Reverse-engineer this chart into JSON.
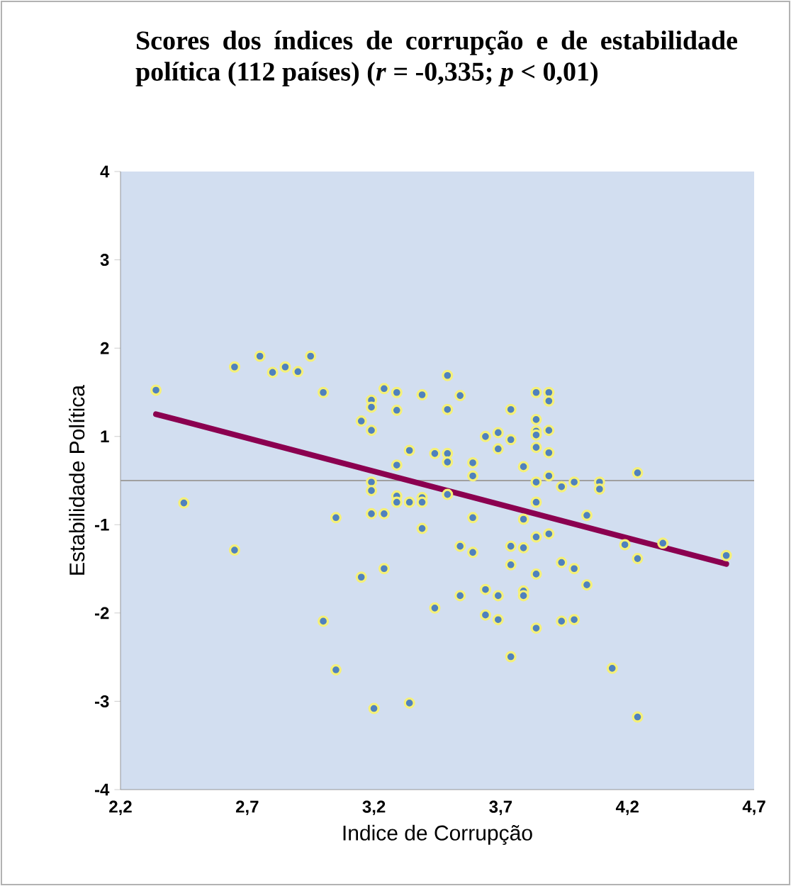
{
  "chart_data": {
    "type": "scatter",
    "title": "Scores dos índices de corrupção e de estabilidade política  (112 países) (*r* = -0,335; *p* < 0,01)",
    "xlabel": "Indice de Corrupção",
    "ylabel": "Estabilidade Política",
    "xlim": [
      2.2,
      4.7
    ],
    "ylim": [
      -4,
      4
    ],
    "xticks": [
      {
        "value": 2.2,
        "label": "2,2"
      },
      {
        "value": 2.7,
        "label": "2,7"
      },
      {
        "value": 3.2,
        "label": "3,2"
      },
      {
        "value": 3.7,
        "label": "3,7"
      },
      {
        "value": 4.2,
        "label": "4,2"
      },
      {
        "value": 4.7,
        "label": "4,7"
      }
    ],
    "yticks": [
      {
        "value": 4,
        "label": "4"
      },
      {
        "value": 2.857,
        "label": "3"
      },
      {
        "value": 1.714,
        "label": "2"
      },
      {
        "value": 0.571,
        "label": "1"
      },
      {
        "value": -0.571,
        "label": "-1"
      },
      {
        "value": -1.714,
        "label": "-2"
      },
      {
        "value": -2.857,
        "label": "-3"
      },
      {
        "value": -4,
        "label": "-4"
      }
    ],
    "ref_lines": [
      {
        "axis": "y",
        "value": 0,
        "color": "#a0a0a0"
      }
    ],
    "marker": "circle",
    "series": [
      {
        "color": "#4f81bd",
        "x": [
          2.34,
          2.65,
          2.75,
          2.8,
          2.85,
          2.9,
          2.95,
          3.0,
          2.45,
          2.65,
          3.05,
          3.0,
          3.15,
          3.24,
          3.15,
          3.19,
          3.19,
          3.19,
          3.24,
          3.29,
          3.29,
          3.39,
          3.34,
          3.29,
          3.19,
          3.19,
          3.19,
          3.24,
          3.29,
          3.29,
          3.34,
          3.39,
          3.39,
          3.44,
          3.44,
          3.49,
          3.54,
          3.49,
          3.49,
          3.49,
          3.59,
          3.59,
          3.39,
          3.49,
          3.59,
          3.54,
          3.59,
          3.74,
          3.64,
          3.69,
          3.69,
          3.74,
          3.84,
          3.89,
          3.89,
          3.84,
          3.84,
          3.84,
          3.89,
          3.84,
          3.89,
          3.79,
          3.84,
          3.89,
          3.94,
          3.99,
          4.09,
          4.09,
          4.24,
          3.84,
          3.79,
          3.84,
          3.89,
          3.74,
          3.79,
          3.74,
          3.84,
          3.94,
          3.99,
          4.04,
          4.04,
          4.19,
          4.24,
          4.34,
          4.59,
          3.54,
          3.64,
          3.69,
          3.79,
          3.79,
          3.64,
          3.69,
          3.84,
          3.94,
          3.99,
          3.05,
          3.2,
          3.34,
          3.74,
          4.14,
          4.24
        ],
        "values": [
          1.17,
          1.47,
          1.61,
          1.4,
          1.47,
          1.41,
          1.61,
          1.14,
          -0.29,
          -0.9,
          -0.48,
          -1.82,
          -1.25,
          -1.14,
          0.77,
          0.65,
          1.04,
          0.95,
          1.19,
          1.14,
          0.91,
          1.11,
          0.39,
          0.2,
          -0.02,
          -0.13,
          -0.43,
          -0.43,
          -0.2,
          -0.28,
          -0.28,
          -0.22,
          -0.62,
          -1.65,
          0.35,
          1.36,
          1.1,
          0.92,
          0.35,
          0.24,
          0.23,
          0.06,
          -0.28,
          -0.18,
          -0.48,
          -0.85,
          -0.93,
          0.92,
          0.57,
          0.62,
          0.41,
          0.53,
          1.14,
          1.14,
          1.03,
          0.79,
          0.64,
          0.59,
          0.65,
          0.43,
          0.36,
          0.18,
          -0.02,
          0.06,
          -0.08,
          -0.02,
          -0.02,
          -0.11,
          0.1,
          -0.28,
          -0.5,
          -0.73,
          -0.69,
          -0.85,
          -0.87,
          -1.09,
          -1.21,
          -1.06,
          -1.14,
          -1.35,
          -0.45,
          -0.83,
          -1.01,
          -0.81,
          -0.97,
          -1.49,
          -1.41,
          -1.49,
          -1.43,
          -1.49,
          -1.74,
          -1.8,
          -1.91,
          -1.82,
          -1.8,
          -2.45,
          -2.95,
          -2.88,
          -2.28,
          -2.43,
          -3.06
        ]
      },
      {
        "type": "line",
        "color": "#8b0050",
        "marker": "none",
        "line_style": "solid",
        "x": [
          2.34,
          4.59
        ],
        "values": [
          0.86,
          -1.08
        ]
      }
    ]
  }
}
